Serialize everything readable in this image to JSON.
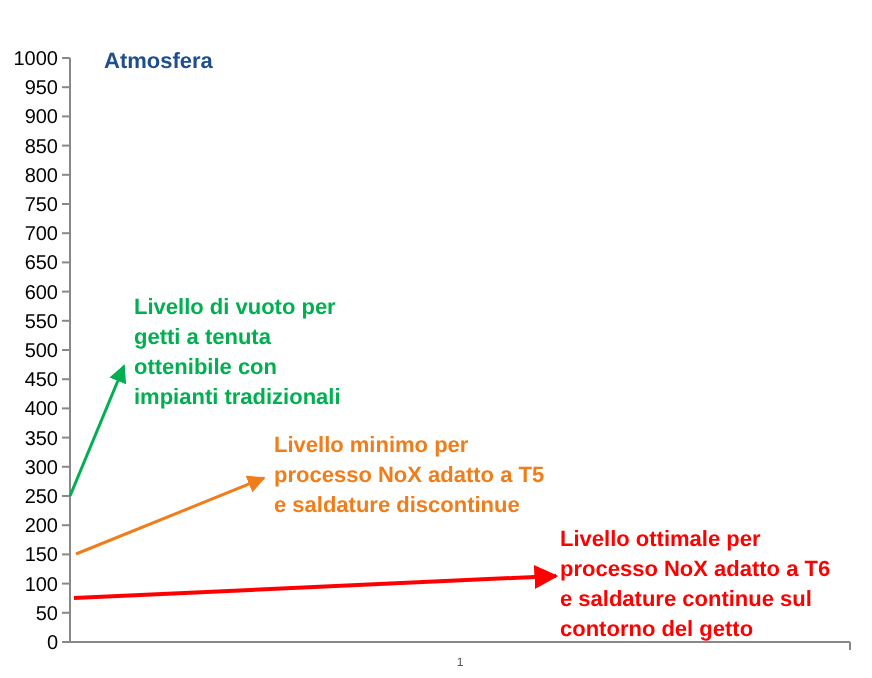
{
  "chart_data": {
    "type": "line",
    "title": "Atmosfera",
    "categories": [
      "1"
    ],
    "ylim": [
      0,
      1000
    ],
    "yticks": [
      0,
      50,
      100,
      150,
      200,
      250,
      300,
      350,
      400,
      450,
      500,
      550,
      600,
      650,
      700,
      750,
      800,
      850,
      900,
      950,
      1000
    ],
    "grid": false,
    "colors": [
      "#00b050",
      "#f07d1a",
      "#ff0000"
    ],
    "annotations": [
      "Livello di vuoto per\ngetti a tenuta\nottenibile con\nimpianti tradizionali",
      "Livello minimo per\nprocesso NoX adatto a T5\ne saldature discontinue",
      "Livello ottimale per\nprocesso NoX adatto a T6\ne saldature continue sul\ncontorno del getto"
    ]
  }
}
